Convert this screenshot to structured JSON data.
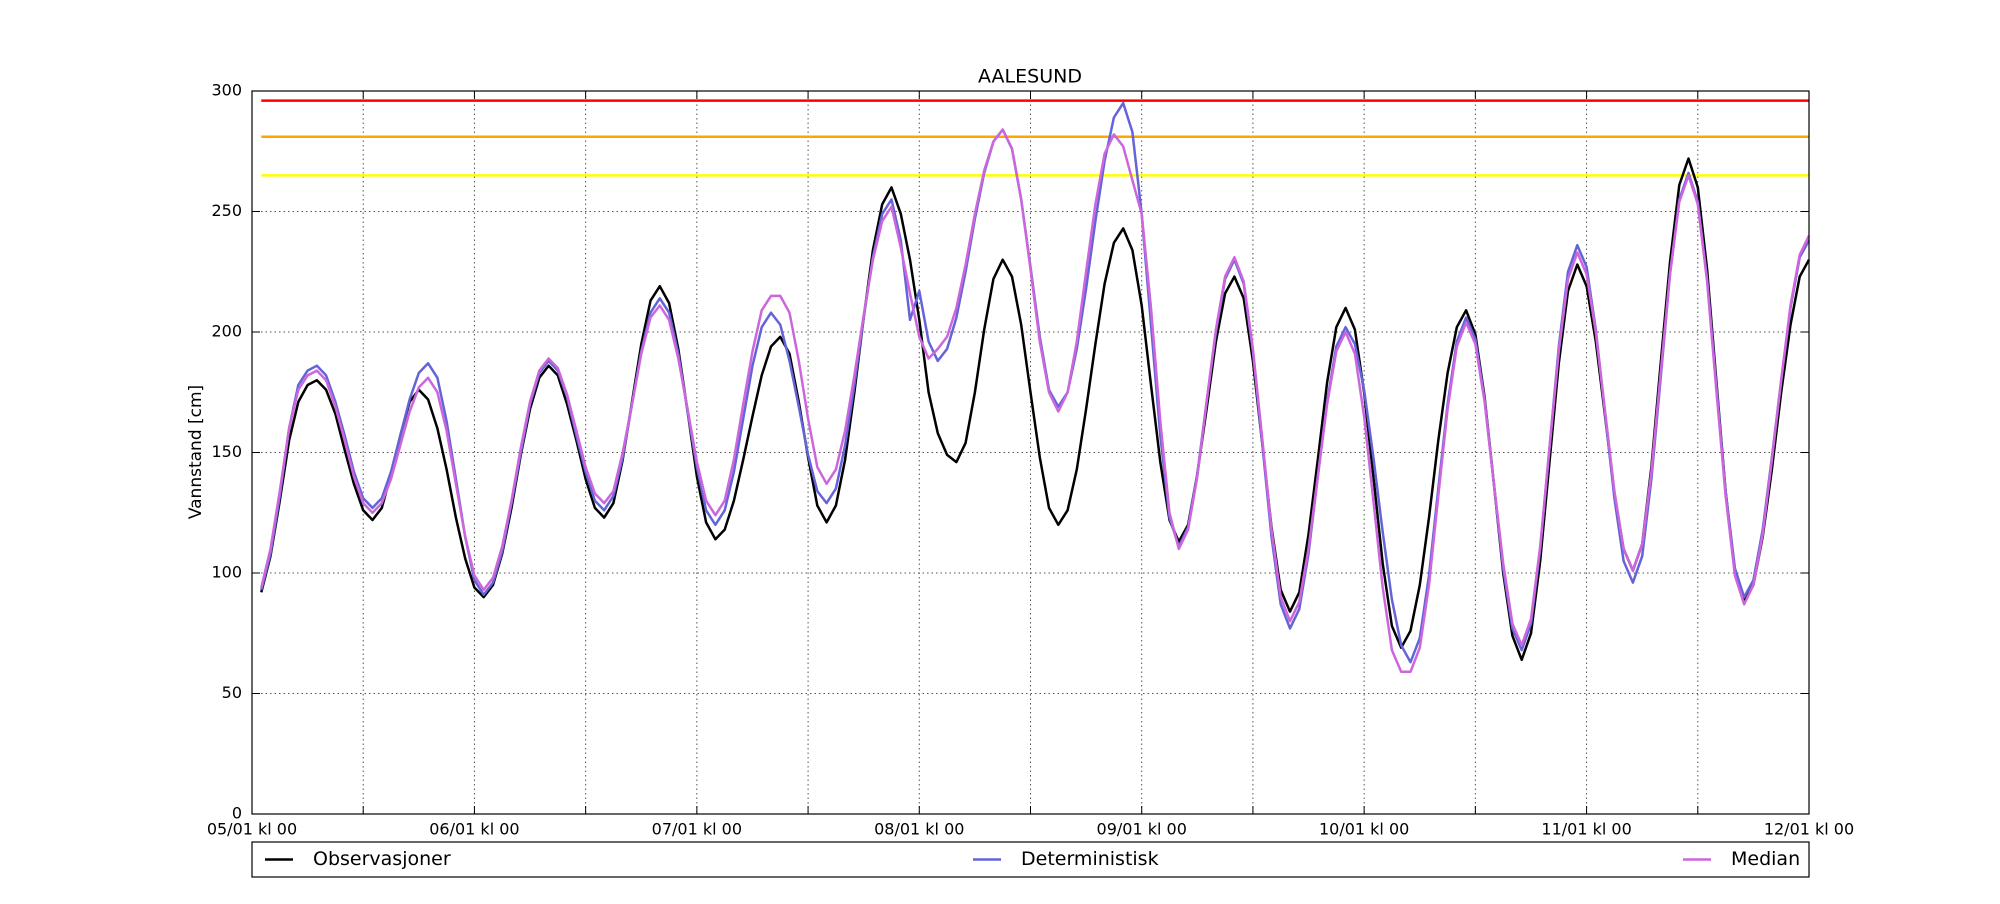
{
  "chart_data": {
    "type": "line",
    "title": "AALESUND",
    "ylabel": "Vannstand [cm]",
    "xlim": [
      0,
      168
    ],
    "ylim": [
      0,
      300
    ],
    "xticks": [
      {
        "value": 0,
        "label": "05/01 kl 00"
      },
      {
        "value": 24,
        "label": "06/01 kl 00"
      },
      {
        "value": 48,
        "label": "07/01 kl 00"
      },
      {
        "value": 72,
        "label": "08/01 kl 00"
      },
      {
        "value": 96,
        "label": "09/01 kl 00"
      },
      {
        "value": 120,
        "label": "10/01 kl 00"
      },
      {
        "value": 144,
        "label": "11/01 kl 00"
      },
      {
        "value": 168,
        "label": "12/01 kl 00"
      }
    ],
    "minor_xticks": [
      12,
      36,
      60,
      84,
      108,
      132,
      156
    ],
    "yticks": [
      0,
      50,
      100,
      150,
      200,
      250,
      300
    ],
    "grid": true,
    "legend": "bottom",
    "thresholds": [
      {
        "value": 296,
        "color": "#ff0000"
      },
      {
        "value": 281,
        "color": "#ffa500"
      },
      {
        "value": 265,
        "color": "#ffff00"
      }
    ],
    "x": [
      1,
      2,
      3,
      4,
      5,
      6,
      7,
      8,
      9,
      10,
      11,
      12,
      13,
      14,
      15,
      16,
      17,
      18,
      19,
      20,
      21,
      22,
      23,
      24,
      25,
      26,
      27,
      28,
      29,
      30,
      31,
      32,
      33,
      34,
      35,
      36,
      37,
      38,
      39,
      40,
      41,
      42,
      43,
      44,
      45,
      46,
      47,
      48,
      49,
      50,
      51,
      52,
      53,
      54,
      55,
      56,
      57,
      58,
      59,
      60,
      61,
      62,
      63,
      64,
      65,
      66,
      67,
      68,
      69,
      70,
      71,
      72,
      73,
      74,
      75,
      76,
      77,
      78,
      79,
      80,
      81,
      82,
      83,
      84,
      85,
      86,
      87,
      88,
      89,
      90,
      91,
      92,
      93,
      94,
      95,
      96,
      97,
      98,
      99,
      100,
      101,
      102,
      103,
      104,
      105,
      106,
      107,
      108,
      109,
      110,
      111,
      112,
      113,
      114,
      115,
      116,
      117,
      118,
      119,
      120,
      121,
      122,
      123,
      124,
      125,
      126,
      127,
      128,
      129,
      130,
      131,
      132,
      133,
      134,
      135,
      136,
      137,
      138,
      139,
      140,
      141,
      142,
      143,
      144,
      145,
      146,
      147,
      148,
      149,
      150,
      151,
      152,
      153,
      154,
      155,
      156,
      157,
      158,
      159,
      160,
      161,
      162,
      163,
      164,
      165,
      166,
      167,
      168
    ],
    "series": [
      {
        "name": "Observasjoner",
        "color": "#000000",
        "values": [
          92,
          107,
          130,
          155,
          171,
          178,
          180,
          176,
          166,
          151,
          137,
          126,
          122,
          127,
          141,
          157,
          171,
          176,
          172,
          160,
          143,
          123,
          106,
          94,
          90,
          95,
          108,
          127,
          149,
          168,
          181,
          186,
          182,
          170,
          155,
          139,
          127,
          123,
          129,
          147,
          171,
          195,
          213,
          219,
          212,
          193,
          167,
          140,
          121,
          114,
          118,
          130,
          147,
          165,
          182,
          194,
          198,
          191,
          171,
          148,
          128,
          121,
          128,
          147,
          175,
          206,
          234,
          253,
          260,
          249,
          230,
          205,
          175,
          158,
          149,
          146,
          154,
          175,
          201,
          222,
          230,
          223,
          203,
          175,
          148,
          127,
          120,
          126,
          143,
          168,
          195,
          220,
          237,
          243,
          234,
          211,
          178,
          146,
          122,
          113,
          120,
          141,
          168,
          196,
          216,
          223,
          214,
          188,
          154,
          119,
          93,
          84,
          92,
          116,
          147,
          179,
          202,
          210,
          201,
          175,
          140,
          104,
          78,
          69,
          76,
          95,
          123,
          155,
          183,
          202,
          209,
          199,
          173,
          137,
          100,
          74,
          64,
          75,
          105,
          146,
          187,
          217,
          228,
          219,
          196,
          165,
          133,
          110,
          101,
          112,
          144,
          187,
          229,
          261,
          272,
          260,
          226,
          180,
          134,
          100,
          88,
          95,
          115,
          143,
          175,
          203,
          223,
          230
        ]
      },
      {
        "name": "Deterministisk",
        "color": "#6464d8",
        "values": [
          93,
          108,
          132,
          160,
          178,
          184,
          186,
          182,
          171,
          157,
          142,
          131,
          127,
          131,
          142,
          157,
          172,
          183,
          187,
          181,
          163,
          139,
          115,
          97,
          91,
          96,
          109,
          129,
          150,
          170,
          183,
          188,
          184,
          173,
          157,
          142,
          130,
          126,
          132,
          148,
          170,
          192,
          208,
          214,
          208,
          191,
          167,
          144,
          126,
          120,
          126,
          142,
          164,
          186,
          202,
          208,
          203,
          188,
          169,
          149,
          134,
          129,
          135,
          153,
          178,
          206,
          231,
          249,
          255,
          238,
          205,
          217,
          196,
          188,
          193,
          206,
          225,
          247,
          266,
          279,
          284,
          276,
          255,
          227,
          198,
          176,
          169,
          175,
          193,
          218,
          246,
          271,
          289,
          295,
          283,
          249,
          203,
          157,
          123,
          111,
          119,
          141,
          171,
          200,
          222,
          230,
          220,
          192,
          154,
          115,
          87,
          77,
          85,
          108,
          140,
          171,
          194,
          202,
          195,
          176,
          148,
          117,
          89,
          70,
          63,
          73,
          99,
          135,
          170,
          196,
          206,
          197,
          172,
          137,
          102,
          77,
          68,
          79,
          110,
          152,
          194,
          225,
          236,
          227,
          201,
          166,
          131,
          105,
          96,
          107,
          139,
          181,
          224,
          255,
          266,
          254,
          222,
          178,
          134,
          102,
          90,
          97,
          118,
          148,
          180,
          210,
          231,
          238
        ]
      },
      {
        "name": "Median",
        "color": "#cc66dd",
        "values": [
          94,
          110,
          134,
          160,
          176,
          182,
          184,
          180,
          169,
          155,
          140,
          129,
          125,
          129,
          139,
          153,
          167,
          177,
          181,
          175,
          159,
          137,
          115,
          99,
          93,
          98,
          111,
          130,
          152,
          171,
          184,
          189,
          185,
          174,
          159,
          144,
          133,
          129,
          134,
          150,
          170,
          191,
          206,
          211,
          205,
          189,
          168,
          146,
          130,
          124,
          130,
          147,
          170,
          192,
          209,
          215,
          215,
          208,
          188,
          164,
          144,
          137,
          143,
          159,
          182,
          207,
          230,
          246,
          252,
          235,
          216,
          198,
          189,
          193,
          198,
          210,
          228,
          249,
          267,
          279,
          284,
          276,
          255,
          226,
          196,
          175,
          167,
          175,
          196,
          225,
          253,
          274,
          282,
          277,
          263,
          249,
          210,
          163,
          125,
          110,
          118,
          140,
          171,
          201,
          223,
          231,
          221,
          193,
          156,
          118,
          90,
          80,
          88,
          110,
          140,
          170,
          192,
          200,
          191,
          165,
          130,
          94,
          68,
          59,
          59,
          69,
          95,
          132,
          168,
          194,
          204,
          195,
          171,
          137,
          104,
          79,
          70,
          81,
          111,
          152,
          192,
          222,
          233,
          224,
          200,
          167,
          134,
          110,
          101,
          112,
          142,
          183,
          224,
          254,
          265,
          253,
          221,
          176,
          132,
          99,
          87,
          95,
          116,
          147,
          180,
          211,
          232,
          240
        ]
      }
    ]
  }
}
